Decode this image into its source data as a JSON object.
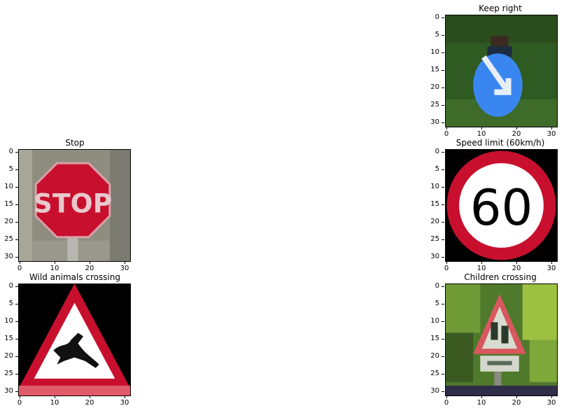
{
  "panels": [
    {
      "id": "keep-right",
      "title": "Keep right"
    },
    {
      "id": "stop",
      "title": "Stop",
      "sign_text": "STOP"
    },
    {
      "id": "speed-limit-60",
      "title": "Speed limit (60km/h)",
      "sign_text": "60"
    },
    {
      "id": "wild-animals-crossing",
      "title": "Wild animals crossing"
    },
    {
      "id": "children-crossing",
      "title": "Children crossing"
    }
  ],
  "axes": {
    "y_ticks": [
      "0",
      "5",
      "10",
      "15",
      "20",
      "25",
      "30"
    ],
    "x_ticks": [
      "0",
      "10",
      "20",
      "30"
    ]
  },
  "colors": {
    "sign_red": "#c8102e",
    "sign_blue": "#3a86f0",
    "foliage_green": "#3f6b2a",
    "background_black": "#000000"
  }
}
